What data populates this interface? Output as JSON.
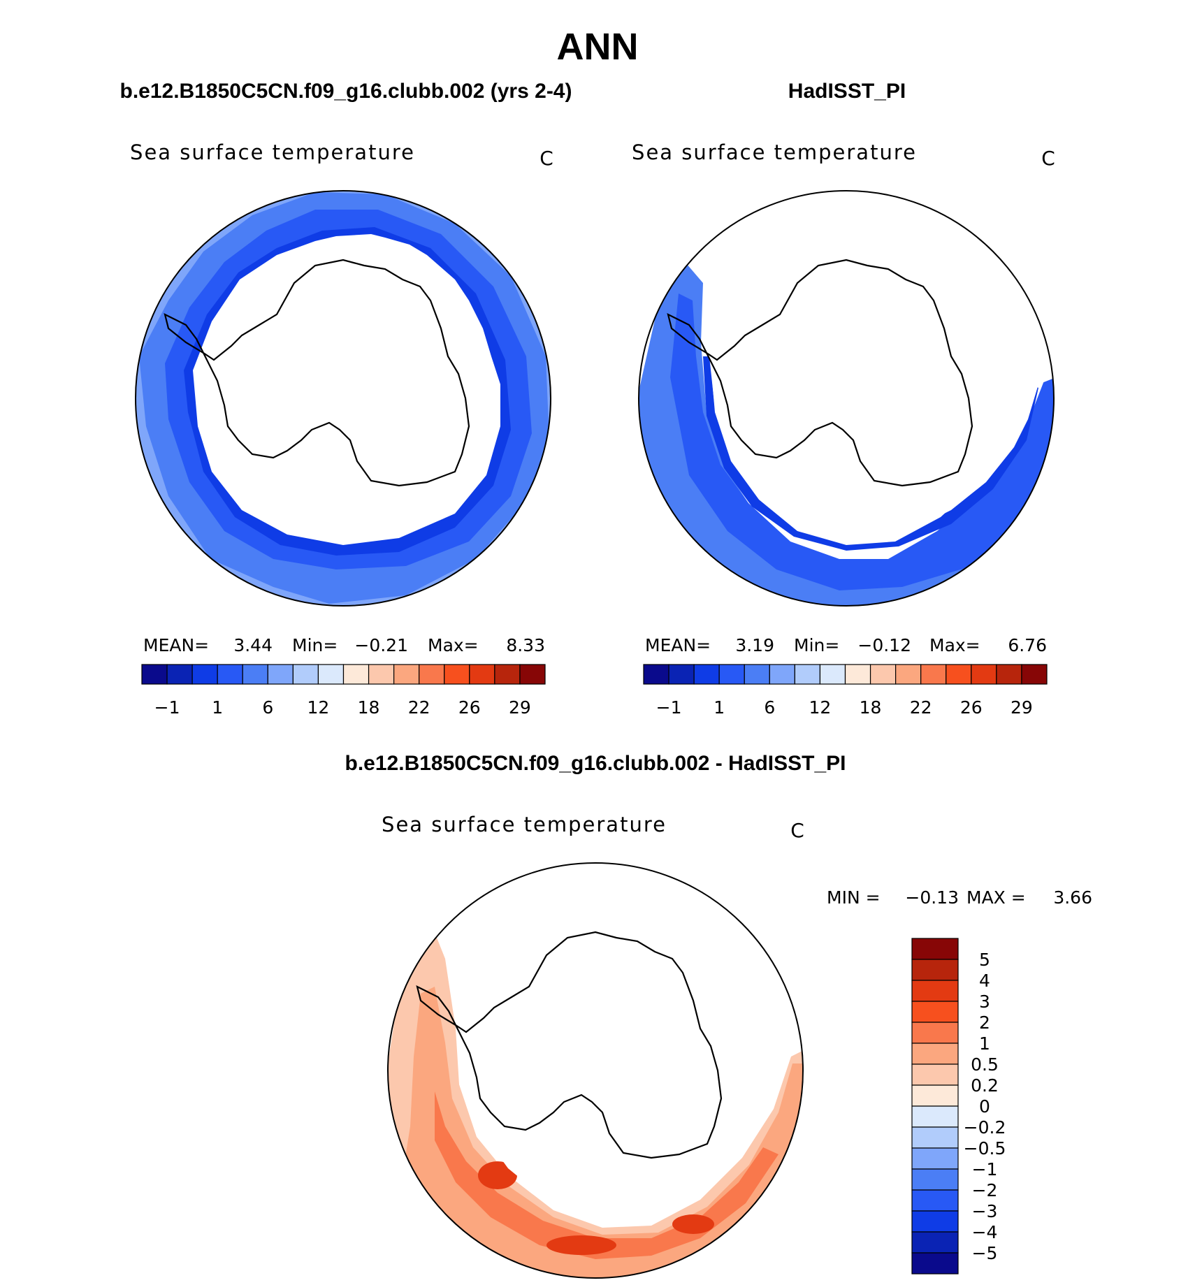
{
  "title": "ANN",
  "panels": {
    "model": {
      "case_label": "b.e12.B1850C5CN.f09_g16.clubb.002 (yrs 2-4)",
      "variable": "Sea surface temperature",
      "units": "C",
      "stats": {
        "mean_label": "MEAN=",
        "mean": "3.44",
        "min_label": "Min=",
        "min": "−0.21",
        "max_label": "Max=",
        "max": "8.33"
      }
    },
    "obs": {
      "case_label": "HadISST_PI",
      "variable": "Sea surface temperature",
      "units": "C",
      "stats": {
        "mean_label": "MEAN=",
        "mean": "3.19",
        "min_label": "Min=",
        "min": "−0.12",
        "max_label": "Max=",
        "max": "6.76"
      }
    },
    "diff": {
      "case_label": "b.e12.B1850C5CN.f09_g16.clubb.002 - HadISST_PI",
      "variable": "Sea surface temperature",
      "units": "C",
      "minmax": {
        "min_label": "MIN =",
        "min": "−0.13",
        "max_label": "MAX =",
        "max": "3.66"
      }
    }
  },
  "colorbar_abs": {
    "colors": [
      "#0a0a8c",
      "#0a23b4",
      "#0f3ce6",
      "#2859f5",
      "#4b7ef5",
      "#7fa6fa",
      "#b1ccfb",
      "#dbe9fc",
      "#fde9d9",
      "#fcc8ad",
      "#fba77f",
      "#f9784c",
      "#f7501e",
      "#e33a12",
      "#b7250c",
      "#870606"
    ],
    "labels": [
      "−1",
      "1",
      "6",
      "12",
      "18",
      "22",
      "26",
      "29"
    ]
  },
  "colorbar_diff": {
    "colors": [
      "#870606",
      "#b7250c",
      "#e33a12",
      "#f7501e",
      "#f9784c",
      "#fba77f",
      "#fcc8ad",
      "#fde9d9",
      "#dbe9fc",
      "#b1ccfb",
      "#7fa6fa",
      "#4b7ef5",
      "#2859f5",
      "#0f3ce6",
      "#0a23b4",
      "#0a0a8c"
    ],
    "labels": [
      "5",
      "4",
      "3",
      "2",
      "1",
      "0.5",
      "0.2",
      "0",
      "−0.2",
      "−0.5",
      "−1",
      "−2",
      "−3",
      "−4",
      "−5"
    ]
  },
  "map_colors": {
    "model_outer": "#7fa6fa",
    "model_mid": "#4b7ef5",
    "model_inner": "#2859f5",
    "model_edge": "#0f3ce6",
    "obs_outer": "#4b7ef5",
    "obs_inner": "#2859f5",
    "obs_edge": "#0f3ce6",
    "diff_light": "#fcc8ad",
    "diff_mid": "#fba77f",
    "diff_strong": "#f9784c",
    "diff_hot": "#e33a12"
  }
}
